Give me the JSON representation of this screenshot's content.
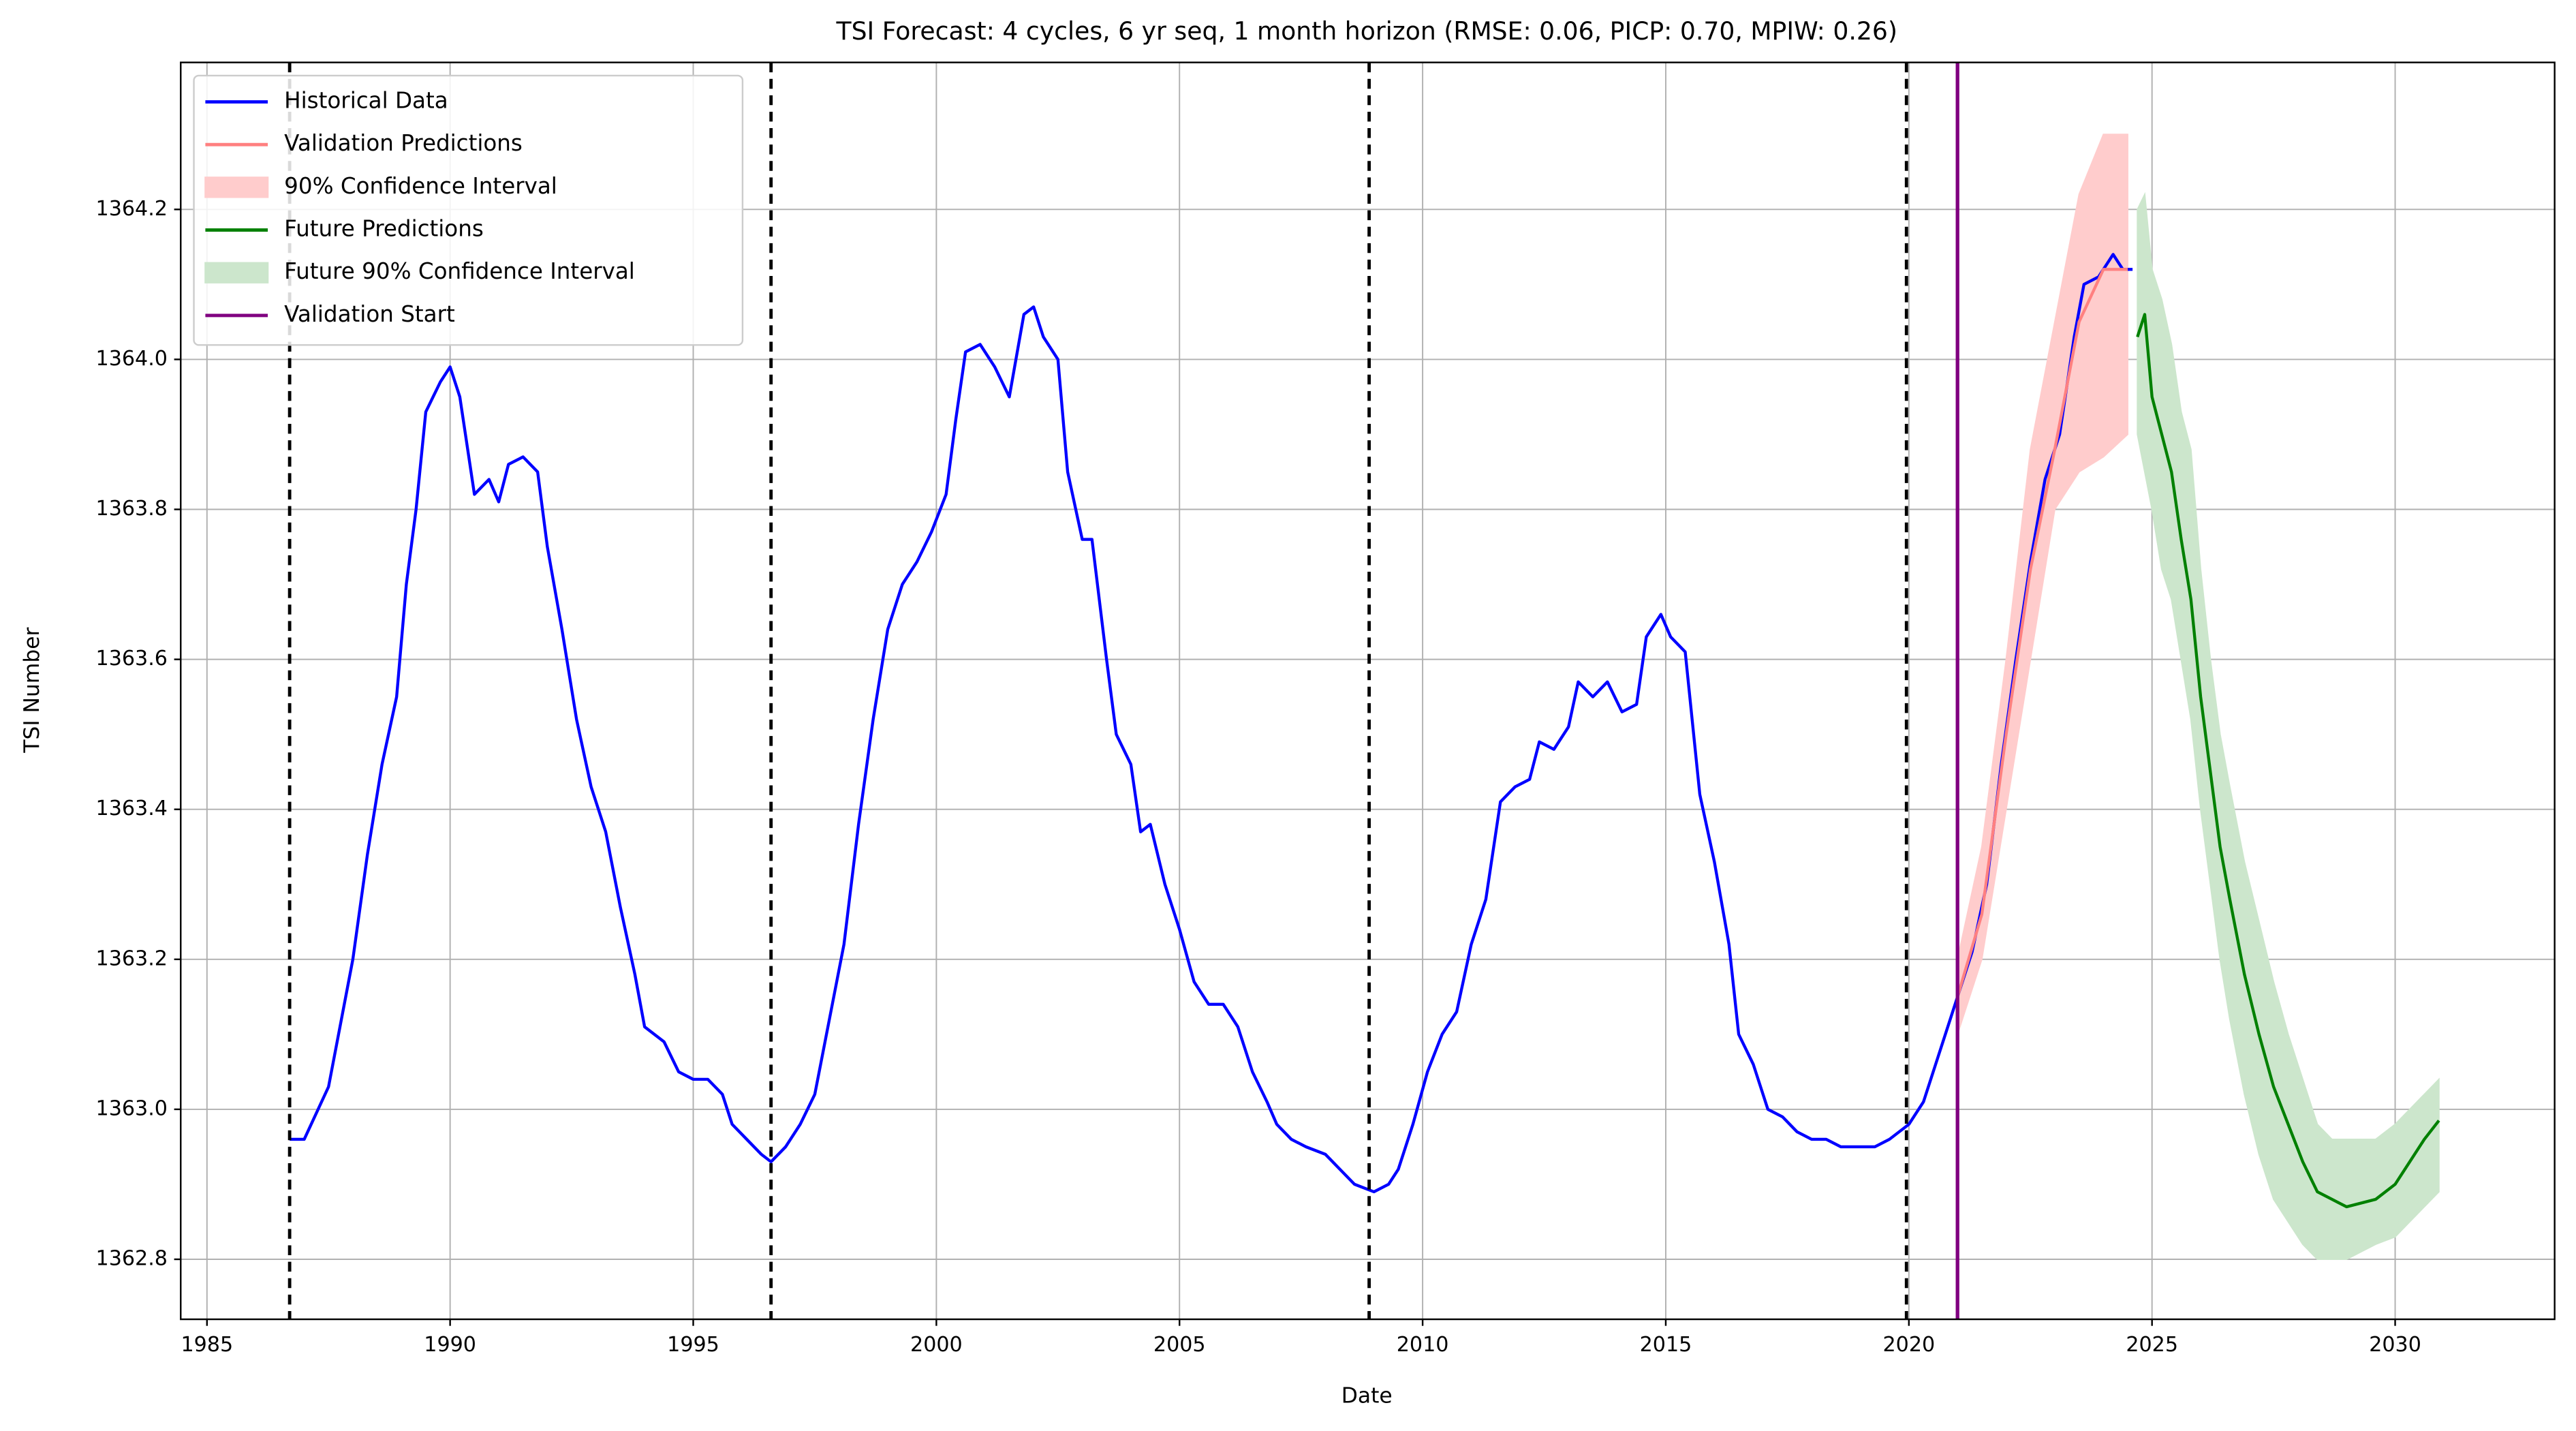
{
  "chart_data": {
    "type": "line",
    "title": "TSI Forecast: 4 cycles, 6 yr seq, 1 month horizon (RMSE: 0.06, PICP: 0.70, MPIW: 0.26)",
    "x_label": "Date",
    "y_label": "TSI Number",
    "xlim": [
      1984.46,
      2033.28
    ],
    "ylim": [
      1362.72,
      1364.396
    ],
    "xticks": [
      1985,
      1990,
      1995,
      2000,
      2005,
      2010,
      2015,
      2020,
      2025,
      2030
    ],
    "yticks": [
      1364.2,
      {
        "value": 1364.0,
        "label": "1364.0"
      },
      1363.8,
      1363.6,
      1363.4,
      1363.2,
      {
        "value": 1363.0,
        "label": "1363.0"
      },
      1362.8
    ],
    "grid": true,
    "legend_loc": "upper left",
    "cycle_lines": [
      1986.7,
      1996.6,
      2008.9,
      2019.95
    ],
    "cycle_line_color": "#000000",
    "series": [
      {
        "name": "Historical Data",
        "kind": "line",
        "color": "#0000ff",
        "x": [
          1986.7,
          1987.0,
          1987.5,
          1988.0,
          1988.3,
          1988.6,
          1988.9,
          1989.1,
          1989.3,
          1989.5,
          1989.8,
          1990.0,
          1990.2,
          1990.5,
          1990.8,
          1991.0,
          1991.2,
          1991.5,
          1991.8,
          1992.0,
          1992.3,
          1992.6,
          1992.9,
          1993.2,
          1993.5,
          1993.8,
          1994.0,
          1994.4,
          1994.7,
          1995.0,
          1995.3,
          1995.6,
          1995.8,
          1996.1,
          1996.4,
          1996.6,
          1996.9,
          1997.2,
          1997.5,
          1997.8,
          1998.1,
          1998.4,
          1998.7,
          1999.0,
          1999.3,
          1999.6,
          1999.9,
          2000.2,
          2000.4,
          2000.6,
          2000.9,
          2001.2,
          2001.5,
          2001.8,
          2002.0,
          2002.2,
          2002.5,
          2002.7,
          2003.0,
          2003.2,
          2003.5,
          2003.7,
          2004.0,
          2004.2,
          2004.4,
          2004.7,
          2005.0,
          2005.3,
          2005.6,
          2005.9,
          2006.2,
          2006.5,
          2006.8,
          2007.0,
          2007.3,
          2007.6,
          2008.0,
          2008.3,
          2008.6,
          2009.0,
          2009.3,
          2009.5,
          2009.8,
          2010.1,
          2010.4,
          2010.7,
          2011.0,
          2011.3,
          2011.6,
          2011.9,
          2012.2,
          2012.4,
          2012.7,
          2013.0,
          2013.2,
          2013.5,
          2013.8,
          2014.1,
          2014.4,
          2014.6,
          2014.9,
          2015.1,
          2015.4,
          2015.7,
          2016.0,
          2016.3,
          2016.5,
          2016.8,
          2017.1,
          2017.4,
          2017.7,
          2018.0,
          2018.3,
          2018.6,
          2019.0,
          2019.3,
          2019.6,
          2020.0,
          2020.3,
          2020.6,
          2021.0,
          2021.3,
          2021.6,
          2021.9,
          2022.2,
          2022.5,
          2022.8,
          2023.1,
          2023.4,
          2023.6,
          2023.9,
          2024.2,
          2024.4,
          2024.6
        ],
        "values": [
          1362.96,
          1362.96,
          1363.03,
          1363.2,
          1363.34,
          1363.46,
          1363.55,
          1363.7,
          1363.8,
          1363.93,
          1363.97,
          1363.99,
          1363.95,
          1363.82,
          1363.84,
          1363.81,
          1363.86,
          1363.87,
          1363.85,
          1363.75,
          1363.64,
          1363.52,
          1363.43,
          1363.37,
          1363.27,
          1363.18,
          1363.11,
          1363.09,
          1363.05,
          1363.04,
          1363.04,
          1363.02,
          1362.98,
          1362.96,
          1362.94,
          1362.93,
          1362.95,
          1362.98,
          1363.02,
          1363.12,
          1363.22,
          1363.38,
          1363.52,
          1363.64,
          1363.7,
          1363.73,
          1363.77,
          1363.82,
          1363.92,
          1364.01,
          1364.02,
          1363.99,
          1363.95,
          1364.06,
          1364.07,
          1364.03,
          1364.0,
          1363.85,
          1363.76,
          1363.76,
          1363.6,
          1363.5,
          1363.46,
          1363.37,
          1363.38,
          1363.3,
          1363.24,
          1363.17,
          1363.14,
          1363.14,
          1363.11,
          1363.05,
          1363.01,
          1362.98,
          1362.96,
          1362.95,
          1362.94,
          1362.92,
          1362.9,
          1362.89,
          1362.9,
          1362.92,
          1362.98,
          1363.05,
          1363.1,
          1363.13,
          1363.22,
          1363.28,
          1363.41,
          1363.43,
          1363.44,
          1363.49,
          1363.48,
          1363.51,
          1363.57,
          1363.55,
          1363.57,
          1363.53,
          1363.54,
          1363.63,
          1363.66,
          1363.63,
          1363.61,
          1363.42,
          1363.33,
          1363.22,
          1363.1,
          1363.06,
          1363.0,
          1362.99,
          1362.97,
          1362.96,
          1362.96,
          1362.95,
          1362.95,
          1362.95,
          1362.96,
          1362.98,
          1363.01,
          1363.07,
          1363.15,
          1363.21,
          1363.3,
          1363.46,
          1363.6,
          1363.73,
          1363.84,
          1363.9,
          1364.03,
          1364.1,
          1364.11,
          1364.14,
          1364.12,
          1364.12
        ]
      },
      {
        "name": "Validation Predictions",
        "kind": "line",
        "color": "#ff8080",
        "x": [
          2021.0,
          2021.5,
          2022.0,
          2022.5,
          2023.0,
          2023.5,
          2024.0,
          2024.5
        ],
        "values": [
          1363.15,
          1363.26,
          1363.5,
          1363.72,
          1363.88,
          1364.05,
          1364.12,
          1364.12
        ]
      },
      {
        "name": "90% Confidence Interval",
        "kind": "band",
        "color": "#ffcccc",
        "x": [
          2021.0,
          2021.5,
          2022.0,
          2022.5,
          2023.0,
          2023.5,
          2024.0,
          2024.5
        ],
        "lower": [
          1363.1,
          1363.2,
          1363.4,
          1363.6,
          1363.8,
          1363.85,
          1363.87,
          1363.9
        ],
        "upper": [
          1363.2,
          1363.35,
          1363.6,
          1363.88,
          1364.05,
          1364.22,
          1364.3,
          1364.3
        ]
      },
      {
        "name": "Future Predictions",
        "kind": "line",
        "color": "#008000",
        "x": [
          2024.7,
          2024.85,
          2025.0,
          2025.2,
          2025.4,
          2025.6,
          2025.8,
          2026.0,
          2026.2,
          2026.4,
          2026.6,
          2026.9,
          2027.2,
          2027.5,
          2027.8,
          2028.1,
          2028.4,
          2028.7,
          2029.0,
          2029.3,
          2029.6,
          2030.0,
          2030.3,
          2030.6,
          2030.9
        ],
        "values": [
          1364.03,
          1364.06,
          1363.95,
          1363.9,
          1363.85,
          1363.76,
          1363.68,
          1363.55,
          1363.45,
          1363.35,
          1363.28,
          1363.18,
          1363.1,
          1363.03,
          1362.98,
          1362.93,
          1362.89,
          1362.88,
          1362.87,
          1362.875,
          1362.88,
          1362.9,
          1362.93,
          1362.96,
          1362.985
        ]
      },
      {
        "name": "Future 90% Confidence Interval",
        "kind": "band",
        "color": "#cce6cc",
        "x": [
          2024.7,
          2024.85,
          2025.0,
          2025.2,
          2025.4,
          2025.6,
          2025.8,
          2026.0,
          2026.2,
          2026.4,
          2026.6,
          2026.9,
          2027.2,
          2027.5,
          2027.8,
          2028.1,
          2028.4,
          2028.7,
          2029.0,
          2029.3,
          2029.6,
          2030.0,
          2030.3,
          2030.6,
          2030.9
        ],
        "lower": [
          1363.9,
          1363.85,
          1363.8,
          1363.72,
          1363.68,
          1363.6,
          1363.52,
          1363.4,
          1363.3,
          1363.2,
          1363.12,
          1363.02,
          1362.94,
          1362.88,
          1362.85,
          1362.82,
          1362.8,
          1362.8,
          1362.8,
          1362.81,
          1362.82,
          1362.83,
          1362.85,
          1362.87,
          1362.89
        ],
        "upper": [
          1364.2,
          1364.22,
          1364.12,
          1364.08,
          1364.02,
          1363.93,
          1363.88,
          1363.72,
          1363.6,
          1363.5,
          1363.43,
          1363.33,
          1363.25,
          1363.17,
          1363.1,
          1363.04,
          1362.98,
          1362.96,
          1362.96,
          1362.96,
          1362.96,
          1362.98,
          1363.0,
          1363.02,
          1363.04
        ]
      },
      {
        "name": "Validation Start",
        "kind": "vline",
        "color": "#800080",
        "x": 2021.0
      }
    ]
  }
}
